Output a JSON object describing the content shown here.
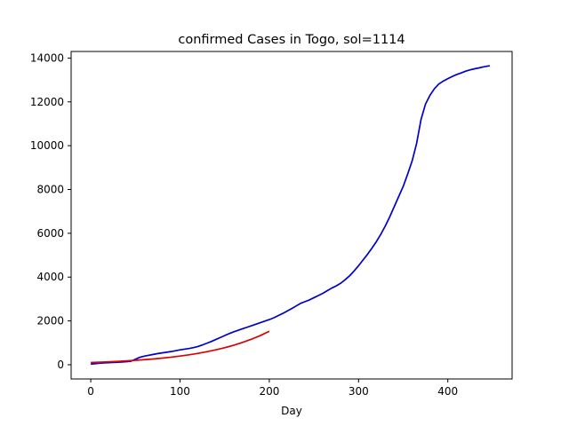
{
  "chart_data": {
    "type": "line",
    "title": "confirmed Cases in Togo, sol=1114",
    "xlabel": "Day",
    "ylabel": "",
    "xlim": [
      -22,
      472
    ],
    "ylim": [
      -650,
      14300
    ],
    "xticks": [
      0,
      100,
      200,
      300,
      400
    ],
    "yticks": [
      0,
      2000,
      4000,
      6000,
      8000,
      10000,
      12000,
      14000
    ],
    "grid": false,
    "legend": "none",
    "series": [
      {
        "color": "#0000cc",
        "x": [
          0,
          5,
          10,
          15,
          20,
          25,
          30,
          35,
          40,
          45,
          50,
          55,
          60,
          65,
          70,
          75,
          80,
          85,
          90,
          95,
          100,
          105,
          110,
          115,
          120,
          125,
          130,
          135,
          140,
          145,
          150,
          155,
          160,
          165,
          170,
          175,
          180,
          185,
          190,
          195,
          200,
          205,
          210,
          215,
          220,
          225,
          230,
          235,
          240,
          245,
          250,
          255,
          260,
          265,
          270,
          275,
          280,
          285,
          290,
          295,
          300,
          305,
          310,
          315,
          320,
          325,
          330,
          335,
          340,
          345,
          350,
          355,
          360,
          365,
          370,
          375,
          380,
          385,
          390,
          395,
          400,
          405,
          410,
          415,
          420,
          425,
          430,
          435,
          440,
          447
        ],
        "y": [
          30,
          50,
          70,
          85,
          95,
          105,
          115,
          125,
          140,
          160,
          250,
          340,
          390,
          430,
          470,
          510,
          540,
          570,
          600,
          640,
          680,
          710,
          740,
          780,
          830,
          900,
          980,
          1060,
          1150,
          1240,
          1330,
          1420,
          1500,
          1570,
          1640,
          1710,
          1780,
          1850,
          1920,
          1990,
          2060,
          2140,
          2240,
          2340,
          2450,
          2560,
          2680,
          2800,
          2880,
          2960,
          3060,
          3160,
          3260,
          3380,
          3500,
          3600,
          3720,
          3880,
          4060,
          4280,
          4520,
          4780,
          5040,
          5320,
          5620,
          5960,
          6340,
          6760,
          7220,
          7680,
          8140,
          8700,
          9300,
          10100,
          11200,
          11900,
          12300,
          12600,
          12820,
          12950,
          13060,
          13160,
          13250,
          13320,
          13400,
          13460,
          13510,
          13550,
          13600,
          13650
        ]
      },
      {
        "color": "#dd0000",
        "x": [
          0,
          10,
          20,
          30,
          40,
          50,
          60,
          70,
          80,
          90,
          100,
          110,
          120,
          130,
          140,
          150,
          160,
          170,
          180,
          190,
          200
        ],
        "y": [
          100,
          115,
          132,
          152,
          175,
          201,
          230,
          263,
          301,
          345,
          395,
          452,
          517,
          592,
          678,
          776,
          888,
          1017,
          1164,
          1333,
          1526
        ]
      }
    ]
  }
}
